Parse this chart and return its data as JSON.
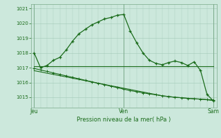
{
  "background_color": "#cce8dc",
  "grid_color": "#aacfbe",
  "line_color": "#1a6b1a",
  "title": "Pression niveau de la mer( hPa )",
  "x_ticks_labels": [
    "Jeu",
    "Ven",
    "Sam"
  ],
  "x_ticks_pos": [
    0,
    14,
    28
  ],
  "ylim": [
    1014.3,
    1021.3
  ],
  "yticks": [
    1015,
    1016,
    1017,
    1018,
    1019,
    1020,
    1021
  ],
  "n_points": 29,
  "series": {
    "peak_line": [
      1018.0,
      1017.0,
      1017.15,
      1017.5,
      1017.7,
      1018.2,
      1018.8,
      1019.3,
      1019.6,
      1019.9,
      1020.1,
      1020.3,
      1020.4,
      1020.55,
      1020.6,
      1019.5,
      1018.7,
      1018.0,
      1017.5,
      1017.3,
      1017.2,
      1017.35,
      1017.45,
      1017.35,
      1017.15,
      1017.4,
      1016.8,
      1015.2,
      1014.75
    ],
    "flat_line": [
      1017.1,
      1017.1,
      1017.1,
      1017.1,
      1017.1,
      1017.1,
      1017.1,
      1017.1,
      1017.1,
      1017.1,
      1017.1,
      1017.1,
      1017.1,
      1017.1,
      1017.1,
      1017.1,
      1017.1,
      1017.1,
      1017.1,
      1017.1,
      1017.1,
      1017.1,
      1017.1,
      1017.1,
      1017.1,
      1017.1,
      1017.1,
      1017.1,
      1017.1
    ],
    "diag1": [
      1016.95,
      1016.85,
      1016.75,
      1016.65,
      1016.55,
      1016.45,
      1016.35,
      1016.25,
      1016.15,
      1016.05,
      1015.95,
      1015.85,
      1015.75,
      1015.65,
      1015.55,
      1015.45,
      1015.38,
      1015.3,
      1015.23,
      1015.17,
      1015.1,
      1015.05,
      1015.0,
      1014.97,
      1014.93,
      1014.9,
      1014.88,
      1014.85,
      1014.82
    ],
    "diag2": [
      1016.8,
      1016.72,
      1016.63,
      1016.55,
      1016.46,
      1016.38,
      1016.29,
      1016.21,
      1016.12,
      1016.04,
      1015.95,
      1015.87,
      1015.78,
      1015.7,
      1015.61,
      1015.53,
      1015.44,
      1015.36,
      1015.27,
      1015.19,
      1015.1,
      1015.05,
      1015.0,
      1014.97,
      1014.93,
      1014.9,
      1014.87,
      1014.83,
      1014.78
    ]
  }
}
